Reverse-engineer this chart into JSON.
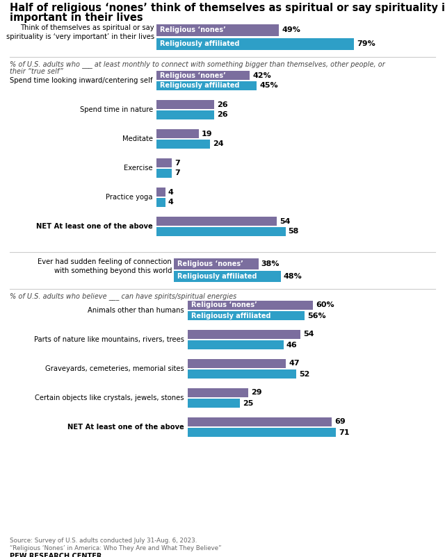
{
  "title_line1": "Half of religious ‘nones’ think of themselves as spiritual or say spirituality is very",
  "title_line2": "important in their lives",
  "color_nones": "#7b6e9e",
  "color_affiliated": "#2e9fc7",
  "background": "#ffffff",
  "section1_label": "Think of themselves as spiritual or say\nspirituality is ‘very important’ in their lives",
  "section1_nones": 49,
  "section1_affiliated": 79,
  "section2_header_line1": "% of U.S. adults who ___ at least monthly to connect with something bigger than themselves, other people, or",
  "section2_header_line2": "their “true self”",
  "section2_categories": [
    "Spend time looking inward/centering self",
    "Spend time in nature",
    "Meditate",
    "Exercise",
    "Practice yoga",
    "NET At least one of the above"
  ],
  "section2_nones": [
    42,
    26,
    19,
    7,
    4,
    54
  ],
  "section2_affiliated": [
    45,
    26,
    24,
    7,
    4,
    58
  ],
  "section2_net_indices": [
    5
  ],
  "section3_label": "Ever had sudden feeling of connection\nwith something beyond this world",
  "section3_nones": 38,
  "section3_affiliated": 48,
  "section4_header": "% of U.S. adults who believe ___ can have spirits/spiritual energies",
  "section4_categories": [
    "Animals other than humans",
    "Parts of nature like mountains, rivers, trees",
    "Graveyards, cemeteries, memorial sites",
    "Certain objects like crystals, jewels, stones",
    "NET At least one of the above"
  ],
  "section4_nones": [
    60,
    54,
    47,
    29,
    69
  ],
  "section4_affiliated": [
    56,
    46,
    52,
    25,
    71
  ],
  "section4_net_indices": [
    4
  ],
  "source_line1": "Source: Survey of U.S. adults conducted July 31-Aug. 6, 2023.",
  "source_line2": "“Religious ‘Nones’ in America: Who They Are and What They Believe”",
  "pew_logo": "PEW RESEARCH CENTER"
}
